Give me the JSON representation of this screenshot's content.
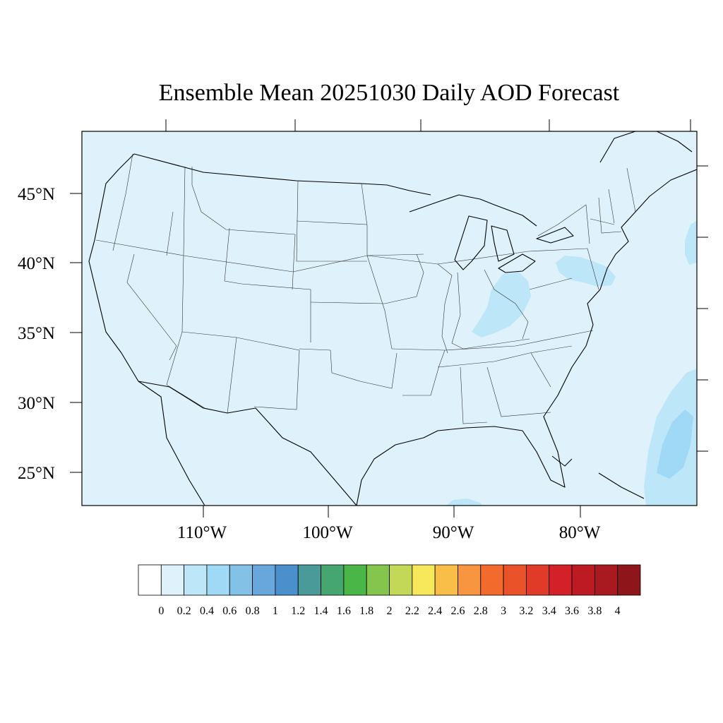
{
  "title": "Ensemble Mean 20251030 Daily AOD Forecast",
  "map": {
    "background_color": "#dff2fb",
    "lat_labels": [
      "45°N",
      "40°N",
      "35°N",
      "30°N",
      "25°N"
    ],
    "lon_labels": [
      "110°W",
      "100°W",
      "90°W",
      "80°W"
    ]
  },
  "colorbar": {
    "levels": [
      "0",
      "0.2",
      "0.4",
      "0.6",
      "0.8",
      "1",
      "1.2",
      "1.4",
      "1.6",
      "1.8",
      "2",
      "2.2",
      "2.4",
      "2.6",
      "2.8",
      "3",
      "3.2",
      "3.4",
      "3.6",
      "3.8",
      "4"
    ],
    "colors": [
      "#ffffff",
      "#dff2fb",
      "#bde6f8",
      "#9fd9f5",
      "#83c1e6",
      "#67a7dc",
      "#4b8fcd",
      "#4a9a9a",
      "#46a66f",
      "#4bb648",
      "#85c54e",
      "#c4d857",
      "#f7e85b",
      "#f9be48",
      "#f89540",
      "#f36a2d",
      "#ea5229",
      "#e03a28",
      "#d42029",
      "#bc1b24",
      "#a81a20",
      "#8e1519"
    ]
  },
  "features": [
    {
      "name": "Ohio Valley AOD maximum",
      "level_range": "0.2-0.4"
    },
    {
      "name": "Mid-Atlantic AOD maximum",
      "level_range": "0.2-0.4"
    },
    {
      "name": "West Atlantic / Bahamas AOD maximum",
      "level_range": "0.2-0.6"
    }
  ]
}
